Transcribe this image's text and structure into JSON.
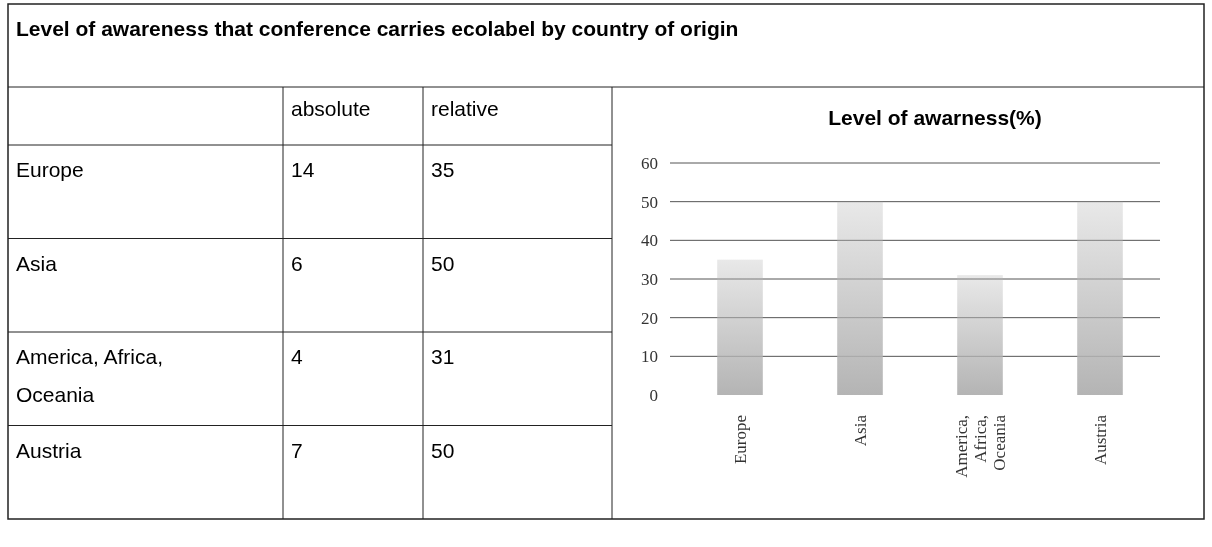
{
  "chart_data": [
    {
      "type": "other",
      "title": "Level of awareness that conference carries ecolabel by country of origin",
      "categories": [
        "Europe",
        "Asia",
        "America, Africa, Oceania",
        "Austria"
      ],
      "series": [
        {
          "name": "absolute",
          "values": [
            14,
            6,
            4,
            7
          ]
        },
        {
          "name": "relative",
          "values": [
            35,
            50,
            31,
            50
          ]
        }
      ],
      "data_labels": true
    },
    {
      "type": "bar",
      "title": "Level of awarness(%)",
      "categories": [
        "Europe",
        "Asia",
        "America, Africa, Oceania",
        "Austria"
      ],
      "values": [
        35,
        50,
        31,
        50
      ],
      "color": "#b4b4b4",
      "ylim": [
        0,
        60
      ],
      "yticks": [
        0,
        10,
        20,
        30,
        40,
        50,
        60
      ],
      "grid": "y"
    }
  ]
}
